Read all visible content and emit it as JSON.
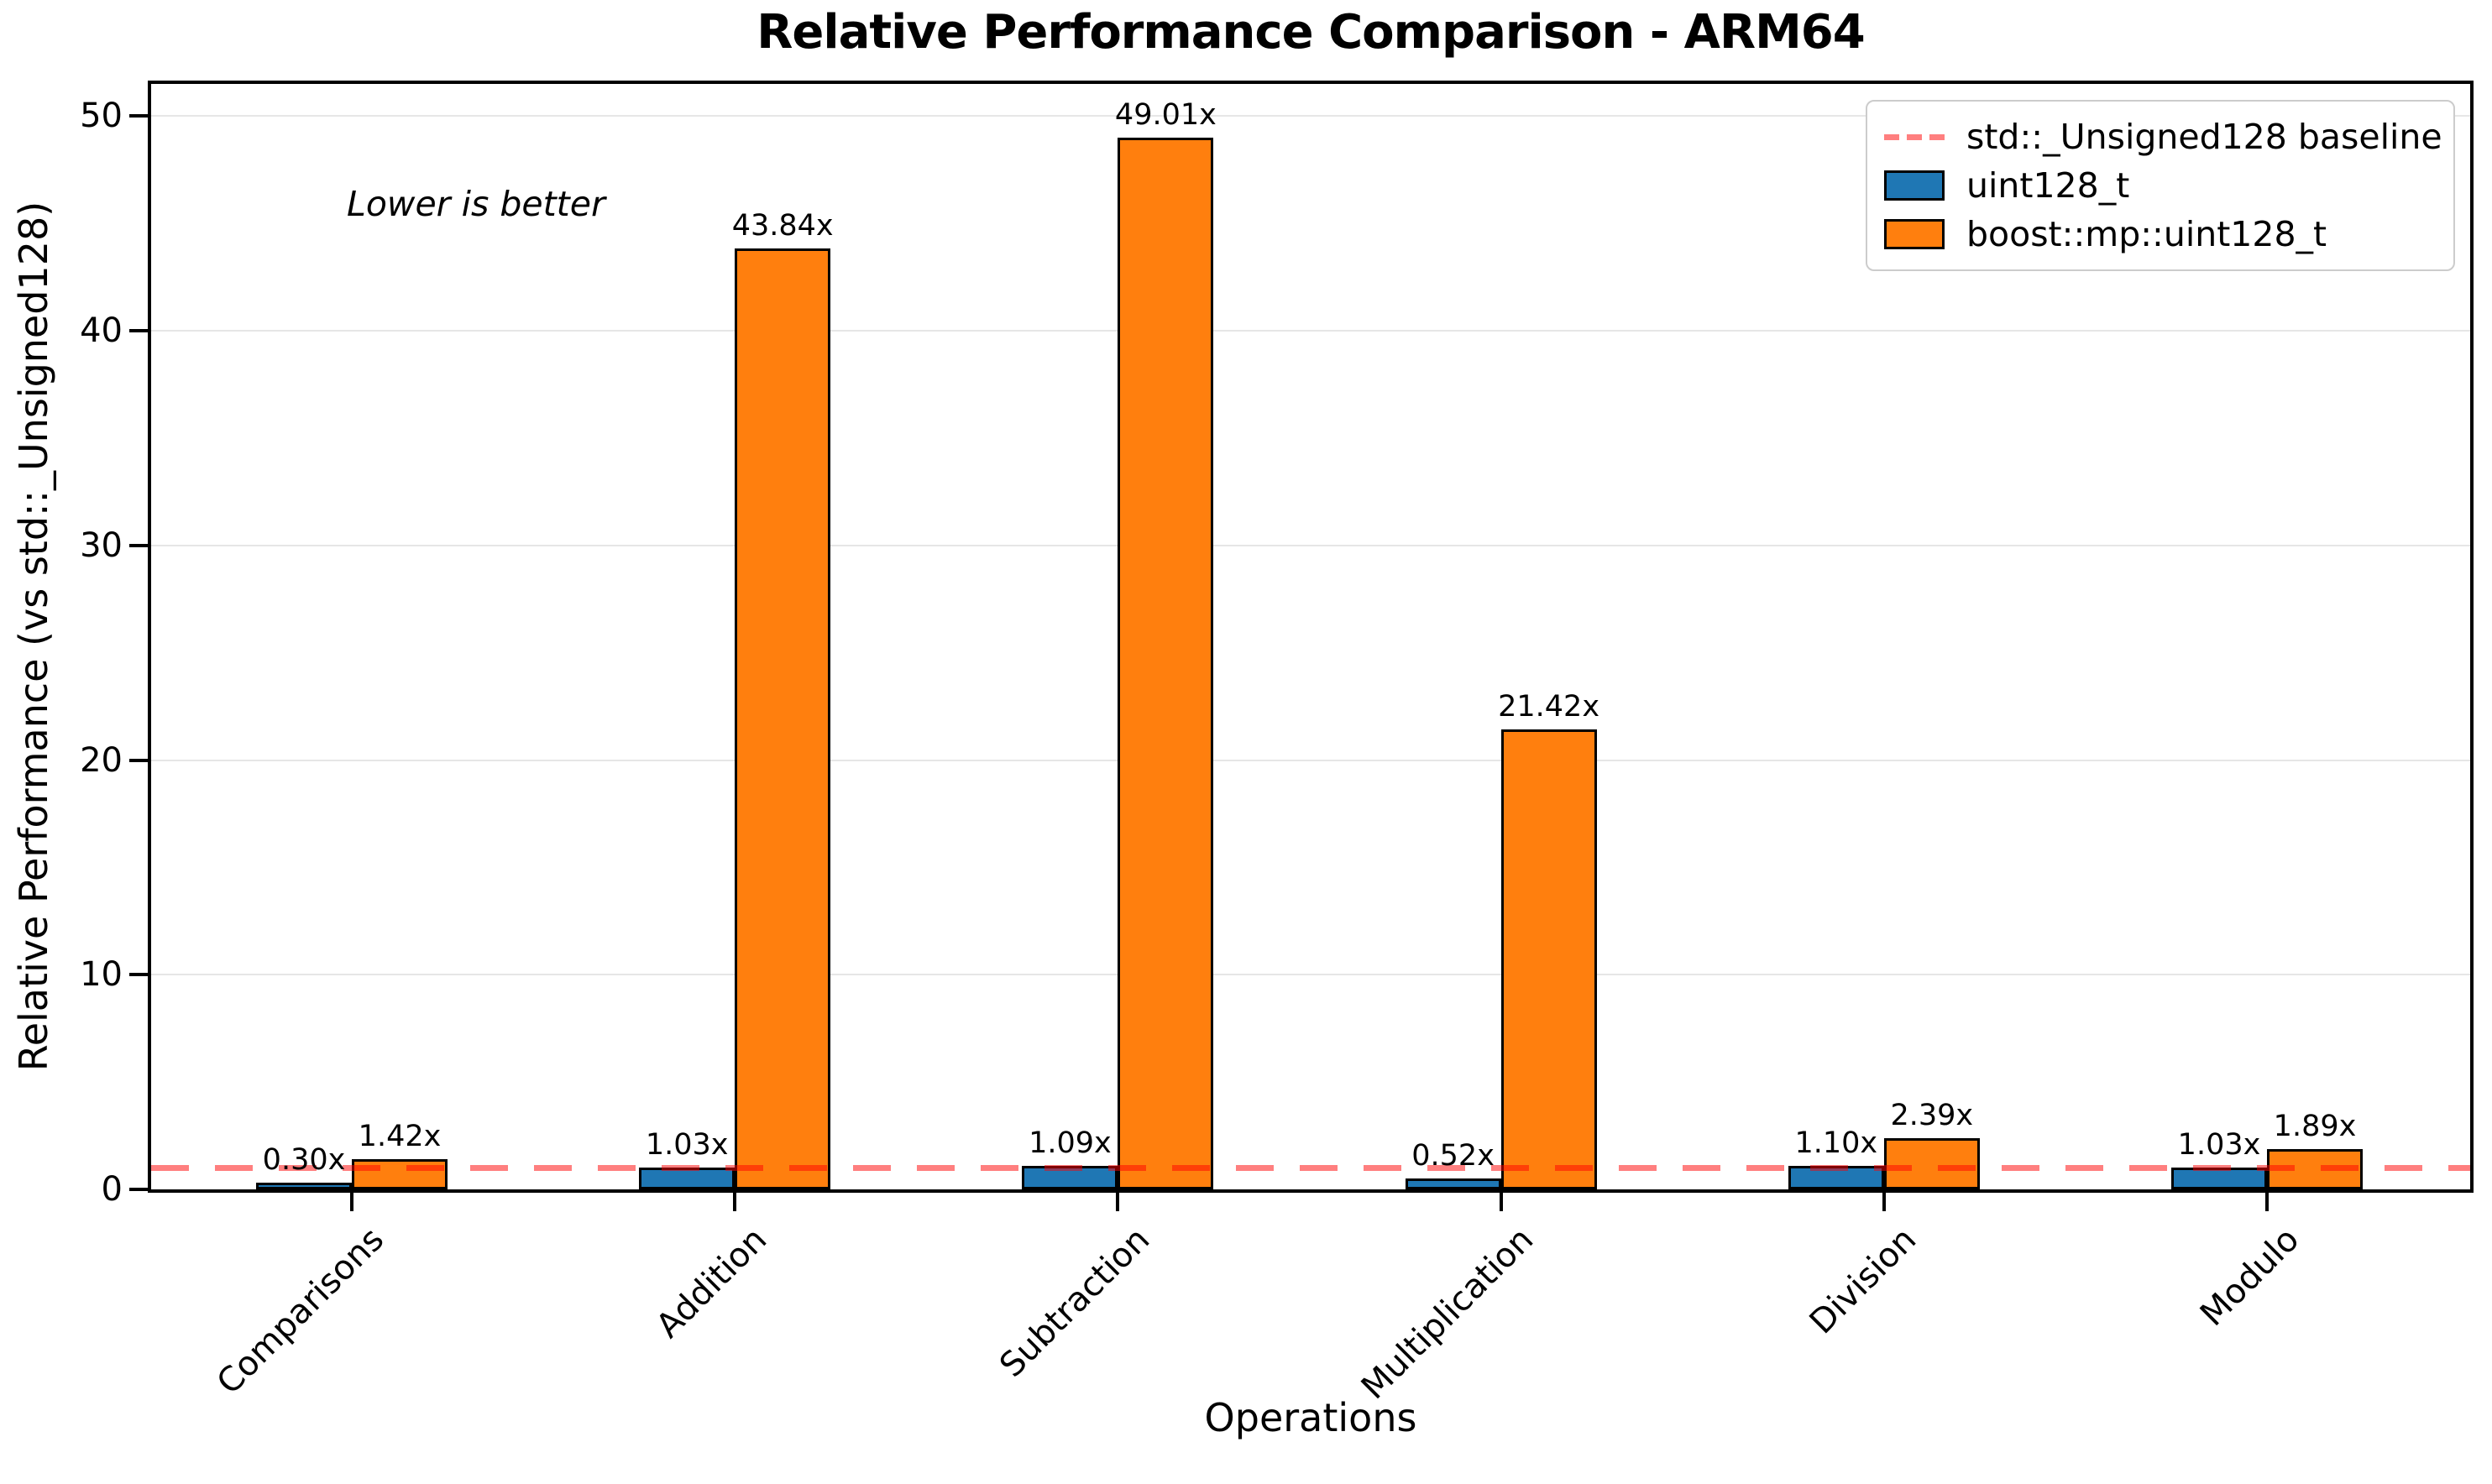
{
  "chart_data": {
    "type": "bar",
    "title": "Relative Performance Comparison - ARM64",
    "xlabel": "Operations",
    "ylabel": "Relative Performance (vs std::_Unsigned128)",
    "annotation": "Lower is better",
    "categories": [
      "Comparisons",
      "Addition",
      "Subtraction",
      "Multiplication",
      "Division",
      "Modulo"
    ],
    "series": [
      {
        "name": "uint128_t",
        "color": "#1f77b4",
        "values": [
          0.3,
          1.03,
          1.09,
          0.52,
          1.1,
          1.03
        ],
        "value_labels": [
          "0.30x",
          "1.03x",
          "1.09x",
          "0.52x",
          "1.10x",
          "1.03x"
        ]
      },
      {
        "name": "boost::mp::uint128_t",
        "color": "#ff7f0e",
        "values": [
          1.42,
          43.84,
          49.01,
          21.42,
          2.39,
          1.89
        ],
        "value_labels": [
          "1.42x",
          "43.84x",
          "49.01x",
          "21.42x",
          "2.39x",
          "1.89x"
        ]
      }
    ],
    "baseline": {
      "label": "std::_Unsigned128 baseline",
      "value": 1.0,
      "color": "#ff0000",
      "opacity": 0.5
    },
    "yticks": [
      0,
      10,
      20,
      30,
      40,
      50
    ],
    "ylim": [
      0,
      51.5
    ],
    "grid": true,
    "legend_position": "upper right",
    "colors": {
      "grid": "#e6e6e6",
      "spine": "#000000",
      "bar_edge": "#000000",
      "background": "#ffffff",
      "legend_border": "#cccccc"
    }
  }
}
